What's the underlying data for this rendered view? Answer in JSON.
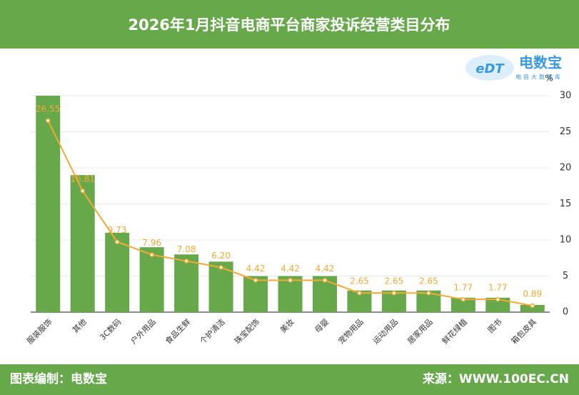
{
  "header": {
    "title": "2026年1月抖音电商平台商家投诉经营类目分布"
  },
  "logo": {
    "mark": "eDT",
    "name": "电数宝",
    "tagline": "电商大数据库"
  },
  "footer": {
    "left": "图表编制：电数宝",
    "right": "来源：WWW.100EC.CN"
  },
  "chart_data": {
    "type": "bar-line",
    "y_label": "%",
    "categories": [
      "服装服饰",
      "其他",
      "3C数码",
      "户外用品",
      "食品生鲜",
      "个护清洁",
      "珠宝配饰",
      "美妆",
      "母婴",
      "宠物用品",
      "运动用品",
      "居家用品",
      "鲜花绿植",
      "图书",
      "箱包皮具"
    ],
    "series": [
      {
        "type": "bar",
        "color": "#67a84b",
        "values": [
          30,
          19,
          11,
          9,
          8,
          7,
          5,
          5,
          5,
          3,
          3,
          3,
          2,
          2,
          1
        ]
      },
      {
        "type": "line",
        "color": "#f5a836",
        "values": [
          26.55,
          16.81,
          9.73,
          7.96,
          7.08,
          6.2,
          4.42,
          4.42,
          4.42,
          2.65,
          2.65,
          2.65,
          1.77,
          1.77,
          0.89
        ],
        "value_labels": [
          "26.55",
          "16.81",
          "9.73",
          "7.96",
          "7.08",
          "6.20",
          "4.42",
          "4.42",
          "4.42",
          "2.65",
          "2.65",
          "2.65",
          "1.77",
          "1.77",
          "0.89"
        ]
      }
    ],
    "ylim": [
      0,
      30
    ],
    "yticks": [
      0,
      5,
      10,
      15,
      20,
      25,
      30
    ],
    "grid": true
  }
}
